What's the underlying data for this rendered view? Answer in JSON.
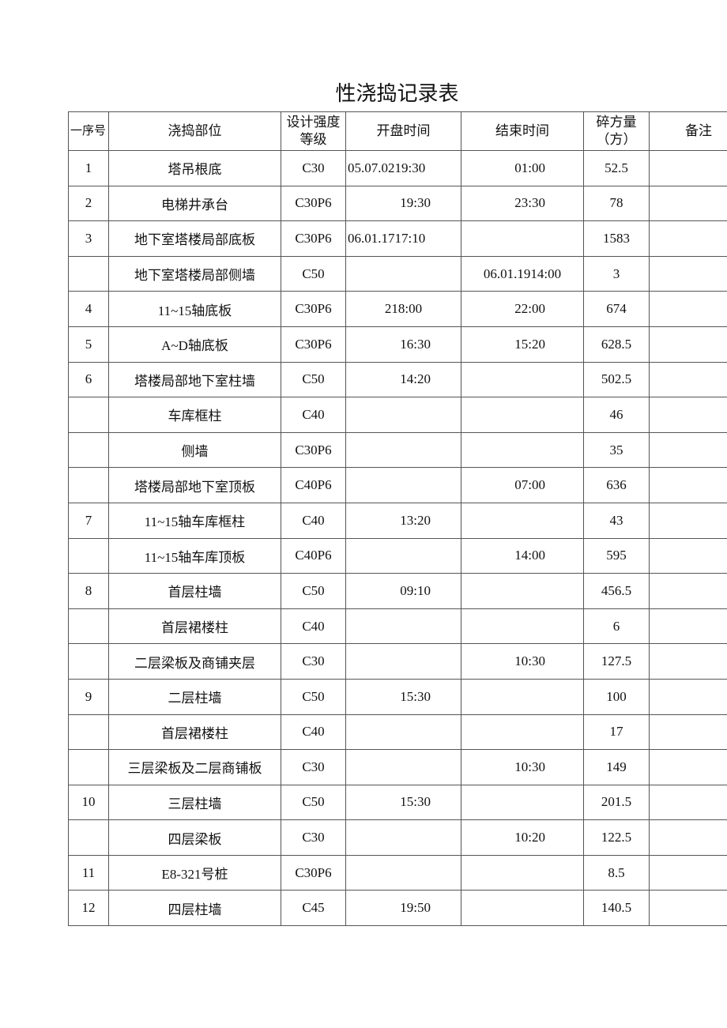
{
  "title": "性浇捣记录表",
  "headers": {
    "seq": "一序号",
    "location": "浇捣部位",
    "grade": "设计强度等级",
    "start": "开盘时间",
    "end": "结束时间",
    "volume": "碎方量（方）",
    "remark": "备注"
  },
  "rows": [
    {
      "seq": "1",
      "location": "塔吊根底",
      "grade": "C30",
      "start": "05.07.0219:30",
      "end": "01:00",
      "volume": "52.5",
      "remark": ""
    },
    {
      "seq": "2",
      "location": "电梯井承台",
      "grade": "C30P6",
      "start": "19:30",
      "end": "23:30",
      "volume": "78",
      "remark": ""
    },
    {
      "seq": "3",
      "location": "地下室塔楼局部底板",
      "grade": "C30P6",
      "start": "06.01.1717:10",
      "end": "",
      "volume": "1583",
      "remark": ""
    },
    {
      "seq": "",
      "location": "地下室塔楼局部侧墙",
      "grade": "C50",
      "start": "",
      "end": "06.01.1914:00",
      "volume": "3",
      "remark": ""
    },
    {
      "seq": "4",
      "location": "11~15轴底板",
      "grade": "C30P6",
      "start": "218:00",
      "end": "22:00",
      "volume": "674",
      "remark": ""
    },
    {
      "seq": "5",
      "location": "A~D轴底板",
      "grade": "C30P6",
      "start": "16:30",
      "end": "15:20",
      "volume": "628.5",
      "remark": ""
    },
    {
      "seq": "6",
      "location": "塔楼局部地下室柱墙",
      "grade": "C50",
      "start": "14:20",
      "end": "",
      "volume": "502.5",
      "remark": ""
    },
    {
      "seq": "",
      "location": "车库框柱",
      "grade": "C40",
      "start": "",
      "end": "",
      "volume": "46",
      "remark": ""
    },
    {
      "seq": "",
      "location": "侧墙",
      "grade": "C30P6",
      "start": "",
      "end": "",
      "volume": "35",
      "remark": ""
    },
    {
      "seq": "",
      "location": "塔楼局部地下室顶板",
      "grade": "C40P6",
      "start": "",
      "end": "07:00",
      "volume": "636",
      "remark": ""
    },
    {
      "seq": "7",
      "location": "11~15轴车库框柱",
      "grade": "C40",
      "start": "13:20",
      "end": "",
      "volume": "43",
      "remark": ""
    },
    {
      "seq": "",
      "location": "11~15轴车库顶板",
      "grade": "C40P6",
      "start": "",
      "end": "14:00",
      "volume": "595",
      "remark": ""
    },
    {
      "seq": "8",
      "location": "首层柱墙",
      "grade": "C50",
      "start": "09:10",
      "end": "",
      "volume": "456.5",
      "remark": ""
    },
    {
      "seq": "",
      "location": "首层裙楼柱",
      "grade": "C40",
      "start": "",
      "end": "",
      "volume": "6",
      "remark": ""
    },
    {
      "seq": "",
      "location": "二层梁板及商铺夹层",
      "grade": "C30",
      "start": "",
      "end": "10:30",
      "volume": "127.5",
      "remark": ""
    },
    {
      "seq": "9",
      "location": "二层柱墙",
      "grade": "C50",
      "start": "15:30",
      "end": "",
      "volume": "100",
      "remark": ""
    },
    {
      "seq": "",
      "location": "首层裙楼柱",
      "grade": "C40",
      "start": "",
      "end": "",
      "volume": "17",
      "remark": ""
    },
    {
      "seq": "",
      "location": "三层梁板及二层商铺板",
      "grade": "C30",
      "start": "",
      "end": "10:30",
      "volume": "149",
      "remark": ""
    },
    {
      "seq": "10",
      "location": "三层柱墙",
      "grade": "C50",
      "start": "15:30",
      "end": "",
      "volume": "201.5",
      "remark": ""
    },
    {
      "seq": "",
      "location": "四层梁板",
      "grade": "C30",
      "start": "",
      "end": "10:20",
      "volume": "122.5",
      "remark": ""
    },
    {
      "seq": "11",
      "location": "E8-321号桩",
      "grade": "C30P6",
      "start": "",
      "end": "",
      "volume": "8.5",
      "remark": ""
    },
    {
      "seq": "12",
      "location": "四层柱墙",
      "grade": "C45",
      "start": "19:50",
      "end": "",
      "volume": "140.5",
      "remark": ""
    }
  ]
}
